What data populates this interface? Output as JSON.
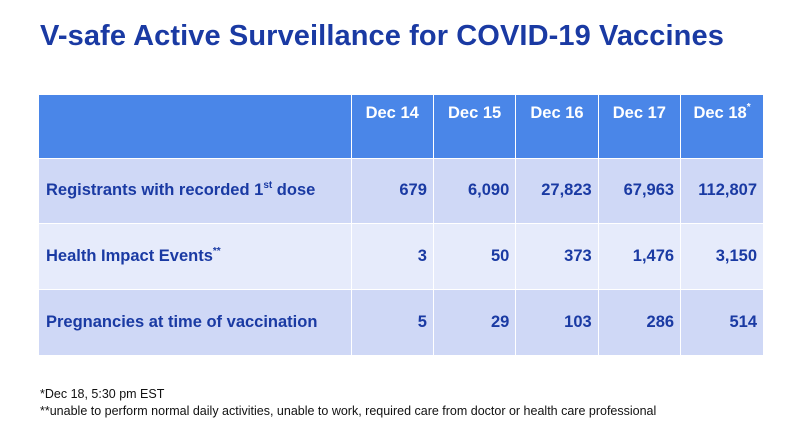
{
  "title": "V-safe Active Surveillance for COVID-19 Vaccines",
  "table": {
    "headers": [
      "Dec 14",
      "Dec 15",
      "Dec 16",
      "Dec 17",
      "Dec 18"
    ],
    "last_header_mark": "*",
    "rows": [
      {
        "label_main": "Registrants with recorded 1",
        "label_sup": "st",
        "label_tail": " dose",
        "values": [
          "679",
          "6,090",
          "27,823",
          "67,963",
          "112,807"
        ]
      },
      {
        "label_main": "Health Impact Events",
        "label_sup": "**",
        "label_tail": "",
        "values": [
          "3",
          "50",
          "373",
          "1,476",
          "3,150"
        ]
      },
      {
        "label_main": "Pregnancies at time of vaccination",
        "label_sup": "",
        "label_tail": "",
        "values": [
          "5",
          "29",
          "103",
          "286",
          "514"
        ]
      }
    ]
  },
  "footnotes": [
    "*Dec 18, 5:30 pm EST",
    "**unable to perform normal daily activities, unable to work, required care from doctor or health care professional"
  ],
  "colors": {
    "title": "#1a3aa3",
    "header_bg": "#4a86e8",
    "row_dark": "#cfd8f6",
    "row_light": "#e6ebfb"
  }
}
